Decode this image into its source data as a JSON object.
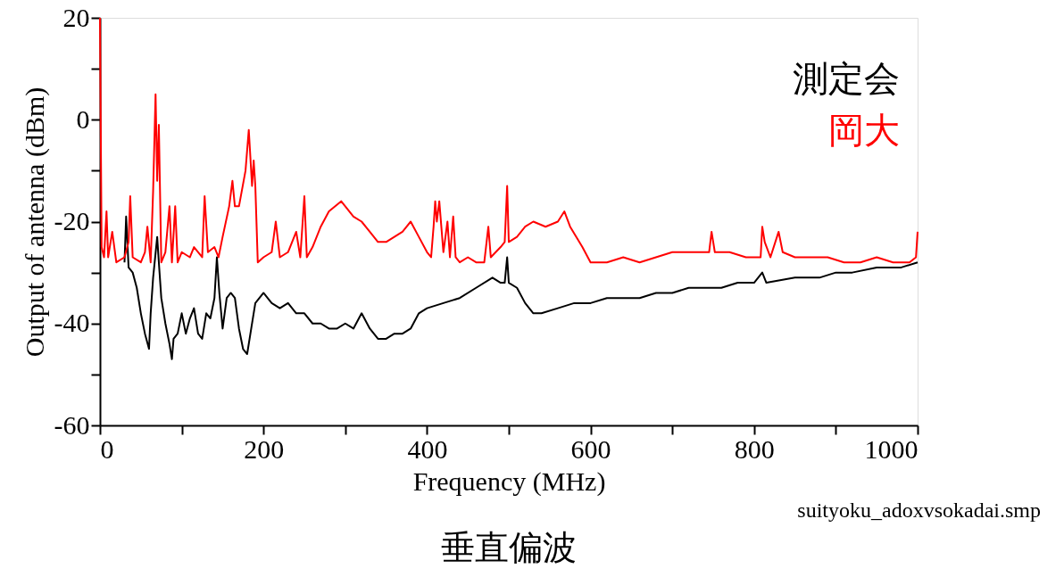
{
  "chart_data": {
    "type": "line",
    "title": "垂直偏波",
    "xlabel": "Frequency (MHz)",
    "ylabel": "Output of antenna (dBm)",
    "annotations": [
      "suityoku_adoxvsokadai.smp"
    ],
    "xlim": [
      0,
      1000
    ],
    "ylim": [
      -60,
      20
    ],
    "xticks": [
      0,
      {
        "value": 100,
        "label": null
      },
      200,
      {
        "value": 300,
        "label": null
      },
      400,
      {
        "value": 500,
        "label": null
      },
      600,
      {
        "value": 700,
        "label": null
      },
      800,
      {
        "value": 900,
        "label": null
      },
      1000
    ],
    "yticks": [
      -60,
      {
        "value": -50,
        "label": null
      },
      -40,
      {
        "value": -30,
        "label": null
      },
      -20,
      {
        "value": -10,
        "label": null
      },
      0,
      {
        "value": 10,
        "label": null
      },
      20
    ],
    "grid": false,
    "legend": "top right",
    "marker": "none",
    "line_style": "solid",
    "series": [
      {
        "name": "測定会",
        "color": "#000000",
        "x": [
          30,
          32,
          35,
          40,
          45,
          50,
          55,
          60,
          62,
          65,
          70,
          72,
          75,
          80,
          85,
          88,
          90,
          95,
          100,
          105,
          110,
          115,
          120,
          125,
          130,
          135,
          140,
          143,
          146,
          150,
          155,
          160,
          165,
          170,
          175,
          180,
          185,
          190,
          195,
          200,
          210,
          220,
          230,
          240,
          250,
          260,
          270,
          280,
          290,
          300,
          310,
          320,
          330,
          340,
          350,
          360,
          370,
          380,
          390,
          400,
          420,
          440,
          460,
          480,
          490,
          495,
          498,
          500,
          510,
          520,
          530,
          540,
          560,
          580,
          600,
          620,
          640,
          660,
          680,
          700,
          720,
          740,
          760,
          780,
          800,
          810,
          815,
          850,
          880,
          900,
          920,
          950,
          980,
          1000
        ],
        "values": [
          -28,
          -19,
          -29,
          -30,
          -33,
          -38,
          -42,
          -45,
          -38,
          -31,
          -23,
          -28,
          -35,
          -40,
          -44,
          -47,
          -43,
          -42,
          -38,
          -42,
          -39,
          -37,
          -42,
          -43,
          -38,
          -39,
          -35,
          -27,
          -34,
          -41,
          -35,
          -34,
          -35,
          -41,
          -45,
          -46,
          -41,
          -36,
          -35,
          -34,
          -36,
          -37,
          -36,
          -38,
          -38,
          -40,
          -40,
          -41,
          -41,
          -40,
          -41,
          -38,
          -41,
          -43,
          -43,
          -42,
          -42,
          -41,
          -38,
          -37,
          -36,
          -35,
          -33,
          -31,
          -32,
          -32,
          -27,
          -32,
          -33,
          -36,
          -38,
          -38,
          -37,
          -36,
          -36,
          -35,
          -35,
          -35,
          -34,
          -34,
          -33,
          -33,
          -33,
          -32,
          -32,
          -30,
          -32,
          -31,
          -31,
          -30,
          -30,
          -29,
          -29,
          -28
        ]
      },
      {
        "name": "岡大",
        "color": "#ff0000",
        "x": [
          0,
          2,
          5,
          8,
          10,
          15,
          20,
          30,
          35,
          37,
          40,
          50,
          55,
          58,
          62,
          65,
          68,
          70,
          72,
          75,
          80,
          85,
          88,
          92,
          95,
          100,
          110,
          115,
          125,
          128,
          132,
          140,
          145,
          150,
          158,
          162,
          165,
          170,
          178,
          182,
          186,
          188,
          190,
          193,
          200,
          210,
          215,
          220,
          230,
          240,
          245,
          250,
          253,
          260,
          270,
          280,
          295,
          300,
          310,
          320,
          330,
          340,
          350,
          360,
          370,
          380,
          390,
          400,
          405,
          408,
          410,
          412,
          415,
          420,
          425,
          428,
          432,
          435,
          440,
          450,
          460,
          470,
          475,
          478,
          490,
          495,
          498,
          500,
          510,
          520,
          530,
          545,
          560,
          568,
          575,
          590,
          600,
          620,
          640,
          660,
          680,
          700,
          720,
          745,
          748,
          752,
          770,
          790,
          808,
          810,
          813,
          820,
          830,
          835,
          850,
          870,
          890,
          910,
          930,
          950,
          970,
          990,
          998,
          1000
        ],
        "values": [
          20,
          -25,
          -27,
          -18,
          -27,
          -22,
          -28,
          -27,
          -24,
          -15,
          -27,
          -28,
          -26,
          -21,
          -28,
          -14,
          5,
          -12,
          -1,
          -28,
          -26,
          -17,
          -28,
          -17,
          -28,
          -26,
          -27,
          -25,
          -27,
          -15,
          -26,
          -25,
          -27,
          -23,
          -17,
          -12,
          -17,
          -17,
          -10,
          -2,
          -13,
          -8,
          -13,
          -28,
          -27,
          -26,
          -20,
          -27,
          -26,
          -22,
          -27,
          -15,
          -27,
          -25,
          -21,
          -18,
          -16,
          -17,
          -19,
          -20,
          -22,
          -24,
          -24,
          -23,
          -22,
          -20,
          -23,
          -26,
          -27,
          -21,
          -16,
          -20,
          -16,
          -26,
          -20,
          -27,
          -19,
          -27,
          -28,
          -27,
          -28,
          -28,
          -21,
          -27,
          -25,
          -24,
          -13,
          -24,
          -23,
          -21,
          -20,
          -21,
          -20,
          -18,
          -21,
          -25,
          -28,
          -28,
          -27,
          -28,
          -27,
          -26,
          -26,
          -26,
          -22,
          -26,
          -26,
          -27,
          -27,
          -21,
          -24,
          -27,
          -22,
          -26,
          -27,
          -27,
          -27,
          -28,
          -28,
          -27,
          -28,
          -28,
          -27,
          -22
        ]
      }
    ]
  }
}
